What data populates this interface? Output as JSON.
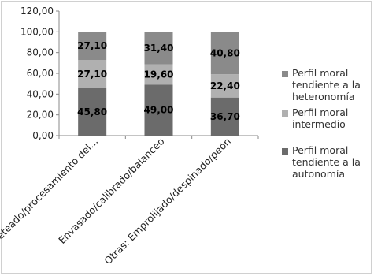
{
  "chart_data": {
    "type": "bar",
    "stacked": true,
    "categories": [
      "Fileteado/procesamiento del...",
      "Envasado/calibrado/balanceo",
      "Otras: Emprolijado/despinado/peón"
    ],
    "series": [
      {
        "name": "Perfil moral tendiente a la autonomía",
        "values": [
          45.8,
          49.0,
          36.7
        ],
        "color": "#6b6b6b"
      },
      {
        "name": "Perfil moral intermedio",
        "values": [
          27.1,
          19.6,
          22.4
        ],
        "color": "#b0b0b0"
      },
      {
        "name": "Perfil moral tendiente a la heteronomía",
        "values": [
          27.1,
          31.4,
          40.8
        ],
        "color": "#8a8a8a"
      }
    ],
    "data_labels": [
      [
        "45,80",
        "49,00",
        "36,70"
      ],
      [
        "27,10",
        "19,60",
        "22,40"
      ],
      [
        "27,10",
        "31,40",
        "40,80"
      ]
    ],
    "y_ticks": [
      "0,00",
      "20,00",
      "40,00",
      "60,00",
      "80,00",
      "100,00",
      "120,00"
    ],
    "ylim": [
      0,
      120
    ],
    "title": "",
    "xlabel": "",
    "ylabel": "",
    "grid": false,
    "legend_placement": "right",
    "legend_lines": [
      [
        "Perfil moral",
        "tendiente a la",
        "heteronomía"
      ],
      [
        "Perfil moral",
        "intermedio"
      ],
      [
        "Perfil moral",
        "tendiente a la",
        "autonomía"
      ]
    ],
    "legend_order": [
      2,
      1,
      0
    ]
  }
}
